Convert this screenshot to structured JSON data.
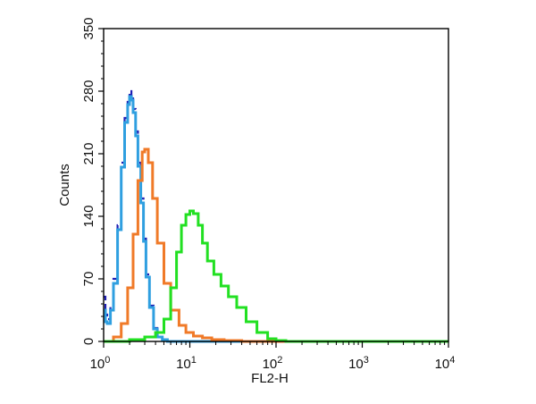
{
  "chart_data": {
    "type": "line",
    "title": "",
    "xlabel": "FL2-H",
    "ylabel": "Counts",
    "x_scale": "log",
    "xlim": [
      1,
      10000
    ],
    "ylim": [
      0,
      350
    ],
    "grid": false,
    "x_ticks": [
      {
        "value": 1,
        "base": "10",
        "exp": "0"
      },
      {
        "value": 10,
        "base": "10",
        "exp": "1"
      },
      {
        "value": 100,
        "base": "10",
        "exp": "2"
      },
      {
        "value": 1000,
        "base": "10",
        "exp": "3"
      },
      {
        "value": 10000,
        "base": "10",
        "exp": "4"
      }
    ],
    "y_ticks": [
      "0",
      "70",
      "140",
      "210",
      "280",
      "350"
    ],
    "series": [
      {
        "color": "#1f1fb4",
        "dashed": true,
        "x": [
          1.0,
          1.05,
          1.1,
          1.2,
          1.3,
          1.45,
          1.6,
          1.75,
          1.9,
          2.0,
          2.1,
          2.2,
          2.35,
          2.5,
          2.7,
          2.9,
          3.1,
          3.4,
          3.8,
          4.2,
          4.8,
          5.5,
          7,
          10,
          20,
          100,
          10000
        ],
        "y": [
          50,
          30,
          25,
          40,
          70,
          130,
          200,
          250,
          270,
          280,
          275,
          260,
          235,
          200,
          160,
          115,
          75,
          40,
          15,
          5,
          2,
          0,
          0,
          0,
          0,
          0,
          0
        ]
      },
      {
        "color": "#2f9fe0",
        "dashed": false,
        "x": [
          1.0,
          1.05,
          1.1,
          1.2,
          1.3,
          1.45,
          1.6,
          1.75,
          1.9,
          2.0,
          2.1,
          2.2,
          2.35,
          2.5,
          2.7,
          2.9,
          3.1,
          3.4,
          3.8,
          4.2,
          4.8,
          5.5,
          7,
          10,
          20,
          100,
          10000
        ],
        "y": [
          35,
          22,
          20,
          35,
          65,
          125,
          195,
          245,
          265,
          274,
          270,
          256,
          230,
          196,
          155,
          112,
          72,
          38,
          14,
          5,
          2,
          0,
          0,
          0,
          0,
          0,
          0
        ]
      },
      {
        "color": "#f07a28",
        "dashed": false,
        "x": [
          1.0,
          1.3,
          1.6,
          1.9,
          2.2,
          2.5,
          2.8,
          3.0,
          3.3,
          3.7,
          4.2,
          5.0,
          6.0,
          7.5,
          9.0,
          11,
          14,
          18,
          25,
          40,
          10000
        ],
        "y": [
          0,
          5,
          20,
          60,
          120,
          180,
          212,
          215,
          200,
          160,
          110,
          65,
          35,
          18,
          10,
          6,
          4,
          2,
          1,
          0,
          0
        ]
      },
      {
        "color": "#22e022",
        "dashed": false,
        "x": [
          1.0,
          2.0,
          3.0,
          4.0,
          5.0,
          6.0,
          7.0,
          8.0,
          9.0,
          10.0,
          11.0,
          12.5,
          14,
          16,
          19,
          23,
          28,
          35,
          45,
          60,
          80,
          100,
          130,
          10000
        ],
        "y": [
          0,
          2,
          5,
          10,
          25,
          60,
          100,
          130,
          142,
          146,
          143,
          130,
          110,
          90,
          75,
          62,
          50,
          38,
          22,
          10,
          3,
          1,
          0,
          0
        ]
      }
    ]
  }
}
